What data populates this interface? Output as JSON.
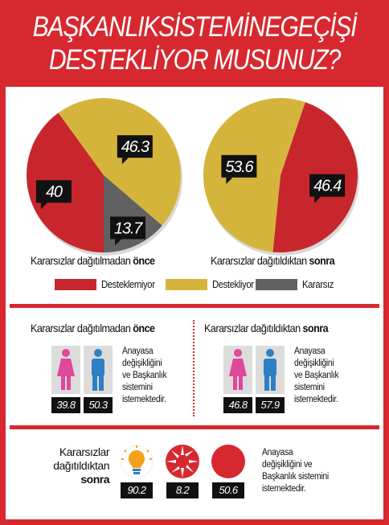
{
  "title": {
    "line1": "BAŞKANLIKSİSTEMİNEGEÇİŞİ",
    "line2": "DESTEKLİYOR MUSUNUZ?"
  },
  "colors": {
    "red": "#c8262d",
    "yellow": "#d5b43c",
    "gray": "#616161",
    "frame": "#d7282f"
  },
  "chart_data": [
    {
      "type": "pie",
      "caption_pre": "Kararsızlar dağıtılmadan ",
      "caption_bold": "önce",
      "slices": [
        {
          "label": "Desteklemiyor",
          "value": 40
        },
        {
          "label": "Destekliyor",
          "value": 46.3
        },
        {
          "label": "Kararsız",
          "value": 13.7
        }
      ],
      "data_labels": [
        "40",
        "46.3",
        "13.7"
      ]
    },
    {
      "type": "pie",
      "caption_pre": "Kararsızlar dağıtıldıktan ",
      "caption_bold": "sonra",
      "slices": [
        {
          "label": "Desteklemiyor",
          "value": 46.4
        },
        {
          "label": "Destekliyor",
          "value": 53.6
        }
      ],
      "data_labels": [
        "46.4",
        "53.6"
      ]
    },
    {
      "type": "bar",
      "caption_pre": "Kararsızlar dağıtılmadan ",
      "caption_bold": "önce",
      "categories": [
        "kadın",
        "erkek"
      ],
      "values": [
        39.8,
        50.3
      ],
      "data_labels": [
        "39.8",
        "50.3"
      ]
    },
    {
      "type": "bar",
      "caption_pre": "Kararsızlar dağıtıldıktan ",
      "caption_bold": "sonra",
      "categories": [
        "kadın",
        "erkek"
      ],
      "values": [
        46.8,
        57.9
      ],
      "data_labels": [
        "46.8",
        "57.9"
      ]
    },
    {
      "type": "bar",
      "caption_lines": [
        "Kararsızlar",
        "dağıtıldıktan",
        "sonra"
      ],
      "categories": [
        "AK Parti",
        "CHP",
        "MHP"
      ],
      "values": [
        90.2,
        8.2,
        50.6
      ],
      "data_labels": [
        "90.2",
        "8.2",
        "50.6"
      ]
    }
  ],
  "legend": [
    {
      "label": "Desteklemiyor",
      "color": "#c8262d"
    },
    {
      "label": "Destekliyor",
      "color": "#d5b43c"
    },
    {
      "label": "Kararsız",
      "color": "#616161"
    }
  ],
  "desc_gender": [
    "Anayasa",
    "değişikliğini",
    "ve Başkanlık",
    "sistemini",
    "istemektedir."
  ],
  "desc_party": [
    "Anayasa",
    "değişikliğini ve",
    "Başkanlık sistemini",
    "istemektedir."
  ]
}
